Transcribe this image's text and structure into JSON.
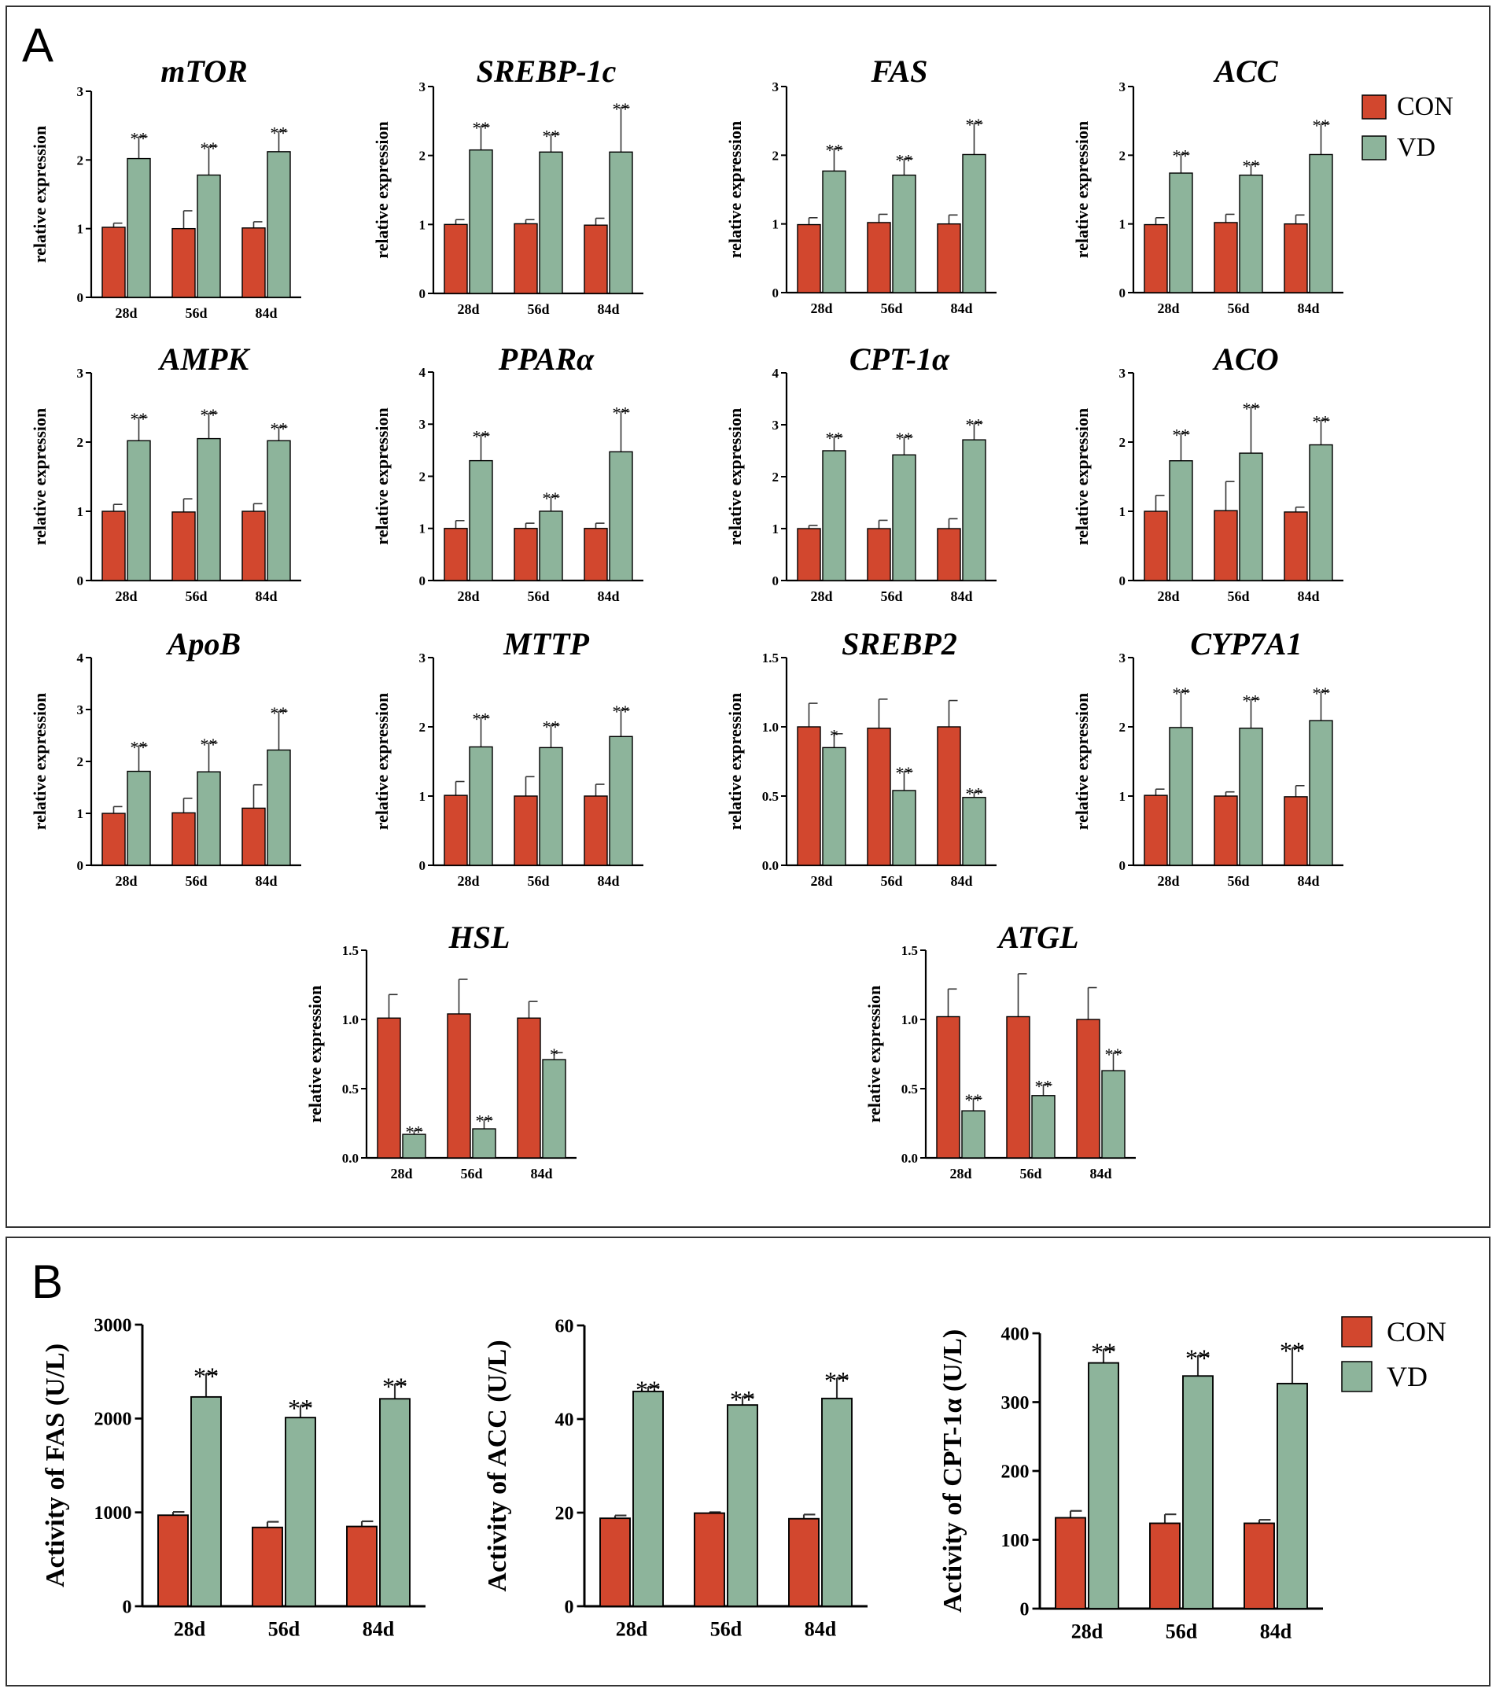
{
  "panels": [
    {
      "letter": "A",
      "legend": {
        "con": "CON",
        "vd": "VD"
      }
    },
    {
      "letter": "B",
      "legend": {
        "con": "CON",
        "vd": "VD"
      }
    }
  ],
  "colors": {
    "con": "#D2472E",
    "vd": "#8DB49B",
    "stroke": "#000000",
    "frame": "#333333"
  },
  "chart_data": [
    {
      "type": "bar",
      "title": "mTOR",
      "ylabel": "relative expression",
      "categories": [
        "28d",
        "56d",
        "84d"
      ],
      "ylim": [
        0,
        3
      ],
      "yticks": [
        "0",
        "1",
        "2",
        "3"
      ],
      "series": [
        {
          "name": "CON",
          "values": [
            1.02,
            1.0,
            1.01
          ],
          "errors": [
            0.06,
            0.26,
            0.09
          ]
        },
        {
          "name": "VD",
          "values": [
            2.02,
            1.78,
            2.12
          ],
          "errors": [
            0.32,
            0.42,
            0.3
          ],
          "sig": [
            "**",
            "**",
            "**"
          ]
        }
      ]
    },
    {
      "type": "bar",
      "title": "SREBP-1c",
      "ylabel": "relative expression",
      "categories": [
        "28d",
        "56d",
        "84d"
      ],
      "ylim": [
        0,
        3
      ],
      "yticks": [
        "0",
        "1",
        "2",
        "3"
      ],
      "series": [
        {
          "name": "CON",
          "values": [
            1.0,
            1.01,
            0.99
          ],
          "errors": [
            0.07,
            0.06,
            0.1
          ]
        },
        {
          "name": "VD",
          "values": [
            2.08,
            2.05,
            2.05
          ],
          "errors": [
            0.35,
            0.26,
            0.65
          ],
          "sig": [
            "**",
            "**",
            "**"
          ]
        }
      ]
    },
    {
      "type": "bar",
      "title": "FAS",
      "ylabel": "relative expression",
      "categories": [
        "28d",
        "56d",
        "84d"
      ],
      "ylim": [
        0,
        3
      ],
      "yticks": [
        "0",
        "1",
        "2",
        "3"
      ],
      "series": [
        {
          "name": "CON",
          "values": [
            0.99,
            1.02,
            1.0
          ],
          "errors": [
            0.1,
            0.12,
            0.13
          ]
        },
        {
          "name": "VD",
          "values": [
            1.77,
            1.71,
            2.01
          ],
          "errors": [
            0.33,
            0.24,
            0.46
          ],
          "sig": [
            "**",
            "**",
            "**"
          ]
        }
      ]
    },
    {
      "type": "bar",
      "title": "ACC",
      "ylabel": "relative expression",
      "categories": [
        "28d",
        "56d",
        "84d"
      ],
      "ylim": [
        0,
        3
      ],
      "yticks": [
        "0",
        "1",
        "2",
        "3"
      ],
      "series": [
        {
          "name": "CON",
          "values": [
            0.99,
            1.02,
            1.0
          ],
          "errors": [
            0.1,
            0.12,
            0.13
          ]
        },
        {
          "name": "VD",
          "values": [
            1.74,
            1.71,
            2.01
          ],
          "errors": [
            0.28,
            0.16,
            0.45
          ],
          "sig": [
            "**",
            "**",
            "**"
          ]
        }
      ]
    },
    {
      "type": "bar",
      "title": "AMPK",
      "ylabel": "relative expression",
      "categories": [
        "28d",
        "56d",
        "84d"
      ],
      "ylim": [
        0,
        3
      ],
      "yticks": [
        "0",
        "1",
        "2",
        "3"
      ],
      "series": [
        {
          "name": "CON",
          "values": [
            1.0,
            0.99,
            1.0
          ],
          "errors": [
            0.1,
            0.19,
            0.11
          ]
        },
        {
          "name": "VD",
          "values": [
            2.02,
            2.05,
            2.02
          ],
          "errors": [
            0.34,
            0.37,
            0.2
          ],
          "sig": [
            "**",
            "**",
            "**"
          ]
        }
      ]
    },
    {
      "type": "bar",
      "title": "PPARα",
      "ylabel": "relative expression",
      "categories": [
        "28d",
        "56d",
        "84d"
      ],
      "ylim": [
        0,
        4
      ],
      "yticks": [
        "0",
        "1",
        "2",
        "3",
        "4"
      ],
      "series": [
        {
          "name": "CON",
          "values": [
            1.0,
            1.0,
            1.0
          ],
          "errors": [
            0.15,
            0.1,
            0.1
          ]
        },
        {
          "name": "VD",
          "values": [
            2.3,
            1.33,
            2.47
          ],
          "errors": [
            0.5,
            0.28,
            0.78
          ],
          "sig": [
            "**",
            "**",
            "**"
          ]
        }
      ]
    },
    {
      "type": "bar",
      "title": "CPT-1α",
      "ylabel": "relative expression",
      "categories": [
        "28d",
        "56d",
        "84d"
      ],
      "ylim": [
        0,
        4
      ],
      "yticks": [
        "0",
        "1",
        "2",
        "3",
        "4"
      ],
      "series": [
        {
          "name": "CON",
          "values": [
            1.0,
            1.0,
            1.0
          ],
          "errors": [
            0.06,
            0.16,
            0.19
          ]
        },
        {
          "name": "VD",
          "values": [
            2.5,
            2.42,
            2.71
          ],
          "errors": [
            0.28,
            0.35,
            0.33
          ],
          "sig": [
            "**",
            "**",
            "**"
          ]
        }
      ]
    },
    {
      "type": "bar",
      "title": "ACO",
      "ylabel": "relative expression",
      "categories": [
        "28d",
        "56d",
        "84d"
      ],
      "ylim": [
        0,
        3
      ],
      "yticks": [
        "0",
        "1",
        "2",
        "3"
      ],
      "series": [
        {
          "name": "CON",
          "values": [
            1.0,
            1.01,
            0.99
          ],
          "errors": [
            0.23,
            0.42,
            0.07
          ]
        },
        {
          "name": "VD",
          "values": [
            1.73,
            1.84,
            1.96
          ],
          "errors": [
            0.4,
            0.67,
            0.36
          ],
          "sig": [
            "**",
            "**",
            "**"
          ]
        }
      ]
    },
    {
      "type": "bar",
      "title": "ApoB",
      "ylabel": "relative expression",
      "categories": [
        "28d",
        "56d",
        "84d"
      ],
      "ylim": [
        0,
        4
      ],
      "yticks": [
        "0",
        "1",
        "2",
        "3",
        "4"
      ],
      "series": [
        {
          "name": "CON",
          "values": [
            1.0,
            1.01,
            1.1
          ],
          "errors": [
            0.13,
            0.28,
            0.45
          ]
        },
        {
          "name": "VD",
          "values": [
            1.81,
            1.8,
            2.22
          ],
          "errors": [
            0.5,
            0.56,
            0.75
          ],
          "sig": [
            "**",
            "**",
            "**"
          ]
        }
      ]
    },
    {
      "type": "bar",
      "title": "MTTP",
      "ylabel": "relative expression",
      "categories": [
        "28d",
        "56d",
        "84d"
      ],
      "ylim": [
        0,
        3
      ],
      "yticks": [
        "0",
        "1",
        "2",
        "3"
      ],
      "series": [
        {
          "name": "CON",
          "values": [
            1.01,
            1.0,
            1.0
          ],
          "errors": [
            0.2,
            0.28,
            0.17
          ]
        },
        {
          "name": "VD",
          "values": [
            1.71,
            1.7,
            1.86
          ],
          "errors": [
            0.43,
            0.33,
            0.39
          ],
          "sig": [
            "**",
            "**",
            "**"
          ]
        }
      ]
    },
    {
      "type": "bar",
      "title": "SREBP2",
      "ylabel": "relative expression",
      "categories": [
        "28d",
        "56d",
        "84d"
      ],
      "ylim": [
        0,
        1.5
      ],
      "yticks": [
        "0.0",
        "0.5",
        "1.0",
        "1.5"
      ],
      "series": [
        {
          "name": "CON",
          "values": [
            1.0,
            0.99,
            1.0
          ],
          "errors": [
            0.17,
            0.21,
            0.19
          ]
        },
        {
          "name": "VD",
          "values": [
            0.85,
            0.54,
            0.49
          ],
          "errors": [
            0.1,
            0.14,
            0.04
          ],
          "sig": [
            "*",
            "**",
            "**"
          ]
        }
      ]
    },
    {
      "type": "bar",
      "title": "CYP7A1",
      "ylabel": "relative expression",
      "categories": [
        "28d",
        "56d",
        "84d"
      ],
      "ylim": [
        0,
        3
      ],
      "yticks": [
        "0",
        "1",
        "2",
        "3"
      ],
      "series": [
        {
          "name": "CON",
          "values": [
            1.01,
            1.0,
            0.99
          ],
          "errors": [
            0.09,
            0.06,
            0.16
          ]
        },
        {
          "name": "VD",
          "values": [
            1.99,
            1.98,
            2.09
          ],
          "errors": [
            0.52,
            0.42,
            0.42
          ],
          "sig": [
            "**",
            "**",
            "**"
          ]
        }
      ]
    },
    {
      "type": "bar",
      "title": "HSL",
      "ylabel": "relative expression",
      "categories": [
        "28d",
        "56d",
        "84d"
      ],
      "ylim": [
        0,
        1.5
      ],
      "yticks": [
        "0.0",
        "0.5",
        "1.0",
        "1.5"
      ],
      "series": [
        {
          "name": "CON",
          "values": [
            1.01,
            1.04,
            1.01
          ],
          "errors": [
            0.17,
            0.25,
            0.12
          ]
        },
        {
          "name": "VD",
          "values": [
            0.17,
            0.21,
            0.71
          ],
          "errors": [
            0.03,
            0.07,
            0.05
          ],
          "sig": [
            "**",
            "**",
            "*"
          ]
        }
      ]
    },
    {
      "type": "bar",
      "title": "ATGL",
      "ylabel": "relative expression",
      "categories": [
        "28d",
        "56d",
        "84d"
      ],
      "ylim": [
        0,
        1.5
      ],
      "yticks": [
        "0.0",
        "0.5",
        "1.0",
        "1.5"
      ],
      "series": [
        {
          "name": "CON",
          "values": [
            1.02,
            1.02,
            1.0
          ],
          "errors": [
            0.2,
            0.31,
            0.23
          ]
        },
        {
          "name": "VD",
          "values": [
            0.34,
            0.45,
            0.63
          ],
          "errors": [
            0.09,
            0.08,
            0.13
          ],
          "sig": [
            "**",
            "**",
            "**"
          ]
        }
      ]
    },
    {
      "type": "bar",
      "title": "",
      "ylabel": "Activity of FAS (U/L)",
      "categories": [
        "28d",
        "56d",
        "84d"
      ],
      "ylim": [
        0,
        3000
      ],
      "yticks": [
        "0",
        "1000",
        "2000",
        "3000"
      ],
      "series": [
        {
          "name": "CON",
          "values": [
            970,
            840,
            850
          ],
          "errors": [
            35,
            60,
            55
          ]
        },
        {
          "name": "VD",
          "values": [
            2230,
            2010,
            2210
          ],
          "errors": [
            250,
            130,
            160
          ],
          "sig": [
            "**",
            "**",
            "**"
          ]
        }
      ]
    },
    {
      "type": "bar",
      "title": "",
      "ylabel": "Activity of ACC (U/L)",
      "categories": [
        "28d",
        "56d",
        "84d"
      ],
      "ylim": [
        0,
        60
      ],
      "yticks": [
        "0",
        "20",
        "40",
        "60"
      ],
      "series": [
        {
          "name": "CON",
          "values": [
            18.8,
            19.9,
            18.7
          ],
          "errors": [
            0.6,
            0.2,
            0.9
          ]
        },
        {
          "name": "VD",
          "values": [
            45.9,
            43.0,
            44.4
          ],
          "errors": [
            1.0,
            1.8,
            4.4
          ],
          "sig": [
            "**",
            "**",
            "**"
          ]
        }
      ]
    },
    {
      "type": "bar",
      "title": "",
      "ylabel": "Activity of CPT-1α (U/L)",
      "categories": [
        "28d",
        "56d",
        "84d"
      ],
      "ylim": [
        0,
        400
      ],
      "yticks": [
        "0",
        "100",
        "200",
        "300",
        "400"
      ],
      "series": [
        {
          "name": "CON",
          "values": [
            132,
            124,
            124
          ],
          "errors": [
            10,
            13,
            5
          ]
        },
        {
          "name": "VD",
          "values": [
            357,
            338,
            327
          ],
          "errors": [
            20,
            30,
            52
          ],
          "sig": [
            "**",
            "**",
            "**"
          ]
        }
      ]
    }
  ]
}
